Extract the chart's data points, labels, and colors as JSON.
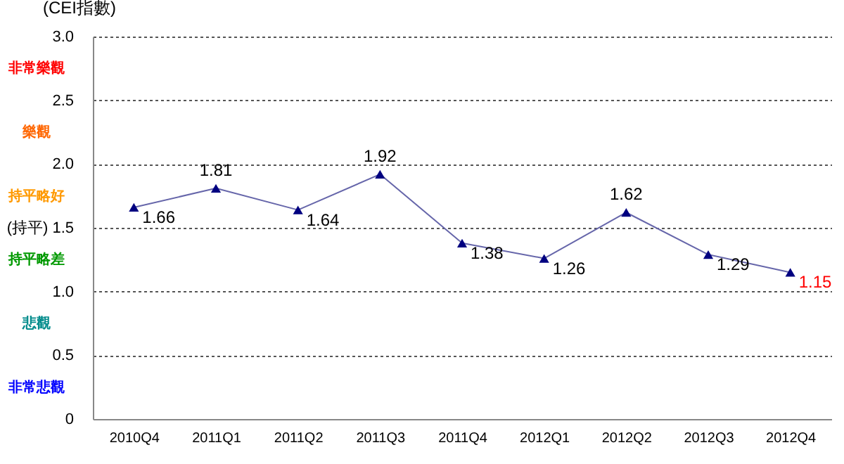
{
  "chart_data": {
    "type": "line",
    "ylabel": "(CEI指數)",
    "categories": [
      "2010Q4",
      "2011Q1",
      "2011Q2",
      "2011Q3",
      "2011Q4",
      "2012Q1",
      "2012Q2",
      "2012Q3",
      "2012Q4"
    ],
    "series": [
      {
        "color": "#000080",
        "values": [
          1.66,
          1.81,
          1.64,
          1.92,
          1.38,
          1.26,
          1.62,
          1.29,
          1.15
        ]
      }
    ],
    "ylim": [
      0,
      3
    ],
    "yticks": [
      {
        "value": 0,
        "label": "0"
      },
      {
        "value": 0.5,
        "label": "0.5"
      },
      {
        "value": 1,
        "label": "1.0"
      },
      {
        "value": 1.5,
        "label": "(持平)  1.5"
      },
      {
        "value": 2,
        "label": "2.0"
      },
      {
        "value": 2.5,
        "label": "2.5"
      },
      {
        "value": 3,
        "label": "3.0"
      }
    ],
    "grid": "y",
    "marker": "triangle",
    "line_style": "solid",
    "data_labels": true,
    "annotations": [
      "非常樂觀",
      "樂觀",
      "持平略好",
      "持平略差",
      "悲觀",
      "非常悲觀"
    ]
  }
}
